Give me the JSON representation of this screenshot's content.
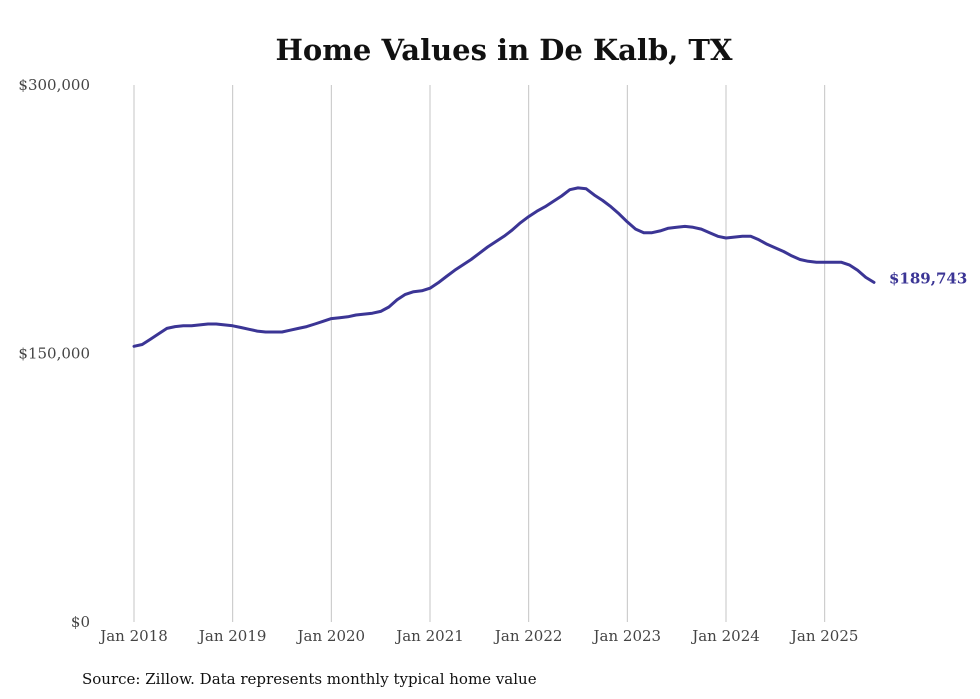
{
  "chart_data": {
    "type": "line",
    "title": "Home Values in De Kalb, TX",
    "xlabel": "",
    "ylabel": "",
    "ylim": [
      0,
      300000
    ],
    "xlim": [
      "2018-01",
      "2025-07"
    ],
    "y_ticks": [
      0,
      150000,
      300000
    ],
    "y_tick_labels": [
      "$0",
      "$150,000",
      "$300,000"
    ],
    "x_ticks": [
      "2018-01",
      "2019-01",
      "2020-01",
      "2021-01",
      "2022-01",
      "2023-01",
      "2024-01",
      "2025-01"
    ],
    "x_tick_labels": [
      "Jan 2018",
      "Jan 2019",
      "Jan 2020",
      "Jan 2021",
      "Jan 2022",
      "Jan 2023",
      "Jan 2024",
      "Jan 2025"
    ],
    "grid": "vertical lines at each January",
    "legend": "none",
    "series": [
      {
        "color": "#3b3595",
        "points": [
          [
            "2018-01",
            154000
          ],
          [
            "2018-02",
            155000
          ],
          [
            "2018-03",
            158000
          ],
          [
            "2018-04",
            161000
          ],
          [
            "2018-05",
            164000
          ],
          [
            "2018-06",
            165000
          ],
          [
            "2018-07",
            165500
          ],
          [
            "2018-08",
            165500
          ],
          [
            "2018-09",
            166000
          ],
          [
            "2018-10",
            166500
          ],
          [
            "2018-11",
            166500
          ],
          [
            "2018-12",
            166000
          ],
          [
            "2019-01",
            165500
          ],
          [
            "2019-02",
            164500
          ],
          [
            "2019-03",
            163500
          ],
          [
            "2019-04",
            162500
          ],
          [
            "2019-05",
            162000
          ],
          [
            "2019-06",
            162000
          ],
          [
            "2019-07",
            162000
          ],
          [
            "2019-08",
            163000
          ],
          [
            "2019-09",
            164000
          ],
          [
            "2019-10",
            165000
          ],
          [
            "2019-11",
            166500
          ],
          [
            "2019-12",
            168000
          ],
          [
            "2020-01",
            169500
          ],
          [
            "2020-02",
            170000
          ],
          [
            "2020-03",
            170500
          ],
          [
            "2020-04",
            171500
          ],
          [
            "2020-05",
            172000
          ],
          [
            "2020-06",
            172500
          ],
          [
            "2020-07",
            173500
          ],
          [
            "2020-08",
            176000
          ],
          [
            "2020-09",
            180000
          ],
          [
            "2020-10",
            183000
          ],
          [
            "2020-11",
            184500
          ],
          [
            "2020-12",
            185000
          ],
          [
            "2021-01",
            186500
          ],
          [
            "2021-02",
            189500
          ],
          [
            "2021-03",
            193000
          ],
          [
            "2021-04",
            196500
          ],
          [
            "2021-05",
            199500
          ],
          [
            "2021-06",
            202500
          ],
          [
            "2021-07",
            206000
          ],
          [
            "2021-08",
            209500
          ],
          [
            "2021-09",
            212500
          ],
          [
            "2021-10",
            215500
          ],
          [
            "2021-11",
            219000
          ],
          [
            "2021-12",
            223000
          ],
          [
            "2022-01",
            226500
          ],
          [
            "2022-02",
            229500
          ],
          [
            "2022-03",
            232000
          ],
          [
            "2022-04",
            235000
          ],
          [
            "2022-05",
            238000
          ],
          [
            "2022-06",
            241500
          ],
          [
            "2022-07",
            242500
          ],
          [
            "2022-08",
            242000
          ],
          [
            "2022-09",
            238500
          ],
          [
            "2022-10",
            235500
          ],
          [
            "2022-11",
            232000
          ],
          [
            "2022-12",
            228000
          ],
          [
            "2023-01",
            223500
          ],
          [
            "2023-02",
            219500
          ],
          [
            "2023-03",
            217500
          ],
          [
            "2023-04",
            217500
          ],
          [
            "2023-05",
            218500
          ],
          [
            "2023-06",
            220000
          ],
          [
            "2023-07",
            220500
          ],
          [
            "2023-08",
            221000
          ],
          [
            "2023-09",
            220500
          ],
          [
            "2023-10",
            219500
          ],
          [
            "2023-11",
            217500
          ],
          [
            "2023-12",
            215500
          ],
          [
            "2024-01",
            214500
          ],
          [
            "2024-02",
            215000
          ],
          [
            "2024-03",
            215500
          ],
          [
            "2024-04",
            215500
          ],
          [
            "2024-05",
            213500
          ],
          [
            "2024-06",
            211000
          ],
          [
            "2024-07",
            209000
          ],
          [
            "2024-08",
            207000
          ],
          [
            "2024-09",
            204500
          ],
          [
            "2024-10",
            202500
          ],
          [
            "2024-11",
            201500
          ],
          [
            "2024-12",
            201000
          ],
          [
            "2025-01",
            201000
          ],
          [
            "2025-02",
            201000
          ],
          [
            "2025-03",
            201000
          ],
          [
            "2025-04",
            199500
          ],
          [
            "2025-05",
            196500
          ],
          [
            "2025-06",
            192500
          ],
          [
            "2025-07",
            189743
          ]
        ]
      }
    ],
    "annotations": [
      {
        "text": "$189,743",
        "x": "2025-07",
        "y": 189743,
        "color": "#3b3595"
      }
    ],
    "source": "Source: Zillow. Data represents monthly typical home value"
  }
}
